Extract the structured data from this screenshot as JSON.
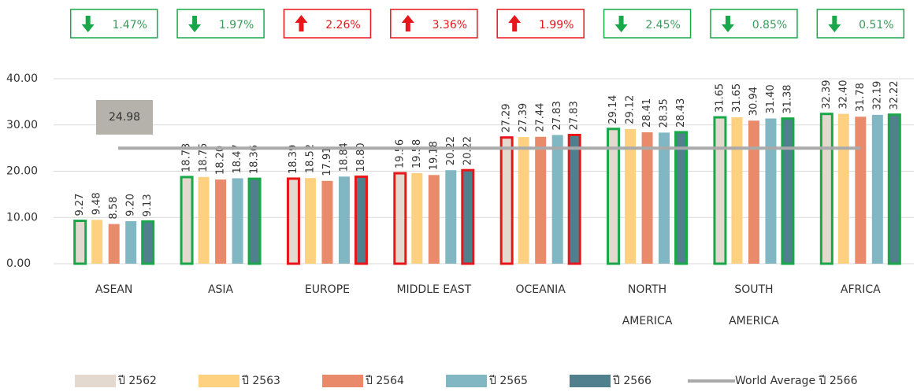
{
  "chart_data": {
    "type": "bar",
    "categories": [
      "ASEAN",
      "ASIA",
      "EUROPE",
      "MIDDLE EAST",
      "OCEANIA",
      [
        "NORTH",
        "AMERICA"
      ],
      [
        "SOUTH",
        "AMERICA"
      ],
      "AFRICA"
    ],
    "series": [
      {
        "name": "ปี 2562",
        "color": "#e4d9ce",
        "values": [
          9.27,
          18.73,
          18.39,
          19.56,
          27.29,
          29.14,
          31.65,
          32.39
        ],
        "value_labels": [
          "9.27",
          "18.73",
          "18.39",
          "19.56",
          "27.29",
          "29.14",
          "31.65",
          "32.39"
        ]
      },
      {
        "name": "ปี 2563",
        "color": "#fdd17f",
        "values": [
          9.48,
          18.75,
          18.52,
          19.58,
          27.39,
          29.12,
          31.65,
          32.4
        ],
        "value_labels": [
          "9.48",
          "18.75",
          "18.52",
          "19.58",
          "27.39",
          "29.12",
          "31.65",
          "32.40"
        ]
      },
      {
        "name": "ปี 2564",
        "color": "#e98a6a",
        "values": [
          8.58,
          18.2,
          17.91,
          19.18,
          27.44,
          28.41,
          30.94,
          31.78
        ],
        "value_labels": [
          "8.58",
          "18.20",
          "17.91",
          "19.18",
          "27.44",
          "28.41",
          "30.94",
          "31.78"
        ]
      },
      {
        "name": "ปี 2565",
        "color": "#80b7c2",
        "values": [
          9.2,
          18.47,
          18.84,
          20.22,
          27.83,
          28.35,
          31.4,
          32.19
        ],
        "value_labels": [
          "9.20",
          "18.47",
          "18.84",
          "20.22",
          "27.83",
          "28.35",
          "31.40",
          "32.19"
        ]
      },
      {
        "name": "ปี 2566",
        "color": "#507f8e",
        "values": [
          9.13,
          18.36,
          18.8,
          20.22,
          27.83,
          28.43,
          31.38,
          32.22
        ],
        "value_labels": [
          "9.13",
          "18.36",
          "18.80",
          "20.22",
          "27.83",
          "28.43",
          "31.38",
          "32.22"
        ]
      }
    ],
    "world_average": {
      "name": "World Average ปี 2566",
      "value": 24.98,
      "color": "#aaaaaa"
    },
    "changes": [
      {
        "value": 1.47,
        "label": "1.47%",
        "direction": "down"
      },
      {
        "value": 1.97,
        "label": "1.97%",
        "direction": "down"
      },
      {
        "value": 2.26,
        "label": "2.26%",
        "direction": "up"
      },
      {
        "value": 3.36,
        "label": "3.36%",
        "direction": "up"
      },
      {
        "value": 1.99,
        "label": "1.99%",
        "direction": "up"
      },
      {
        "value": 2.45,
        "label": "2.45%",
        "direction": "down"
      },
      {
        "value": 0.85,
        "label": "0.85%",
        "direction": "down"
      },
      {
        "value": 0.51,
        "label": "0.51%",
        "direction": "down"
      }
    ],
    "ylim": [
      0,
      40
    ],
    "yticks": [
      {
        "value": 0,
        "label": "0.00"
      },
      {
        "value": 10,
        "label": "10.00"
      },
      {
        "value": 20,
        "label": "20.00"
      },
      {
        "value": 30,
        "label": "30.00"
      },
      {
        "value": 40,
        "label": "40.00"
      }
    ],
    "grid": true
  }
}
